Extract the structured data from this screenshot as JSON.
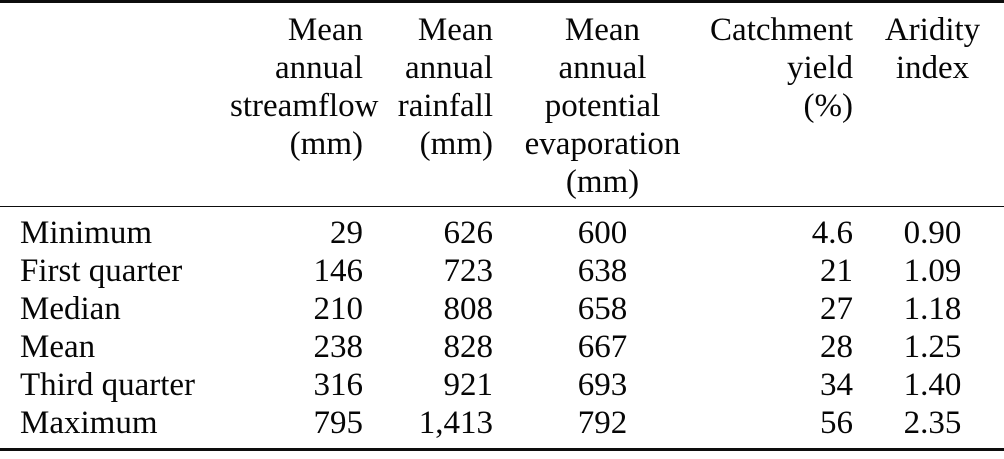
{
  "table": {
    "columns": [
      {
        "label": "",
        "align": "left"
      },
      {
        "label": "Mean annual streamflow (mm)",
        "align": "right",
        "lines": [
          "Mean",
          "annual",
          "streamflow",
          "(mm)"
        ]
      },
      {
        "label": "Mean annual rainfall (mm)",
        "align": "right",
        "lines": [
          "Mean",
          "annual",
          "rainfall",
          "(mm)"
        ]
      },
      {
        "label": "Mean annual potential evaporation (mm)",
        "align": "center",
        "lines": [
          "Mean",
          "annual",
          "potential",
          "evaporation",
          "(mm)"
        ]
      },
      {
        "label": "Catchment yield (%)",
        "align": "right",
        "lines": [
          "Catchment",
          "yield",
          "(%)"
        ]
      },
      {
        "label": "Aridity index",
        "align": "center",
        "lines": [
          "Aridity",
          "index"
        ]
      }
    ],
    "rows": [
      {
        "label": "Minimum",
        "values": [
          "29",
          "626",
          "600",
          "4.6",
          "0.90"
        ]
      },
      {
        "label": "First quarter",
        "values": [
          "146",
          "723",
          "638",
          "21",
          "1.09"
        ]
      },
      {
        "label": "Median",
        "values": [
          "210",
          "808",
          "658",
          "27",
          "1.18"
        ]
      },
      {
        "label": "Mean",
        "values": [
          "238",
          "828",
          "667",
          "28",
          "1.25"
        ]
      },
      {
        "label": "Third quarter",
        "values": [
          "316",
          "921",
          "693",
          "34",
          "1.40"
        ]
      },
      {
        "label": "Maximum",
        "values": [
          "795",
          "1,413",
          "792",
          "56",
          "2.35"
        ]
      }
    ],
    "text_color": "#060606",
    "rule_color": "#0d0d0d",
    "background_color": "#ffffff"
  }
}
